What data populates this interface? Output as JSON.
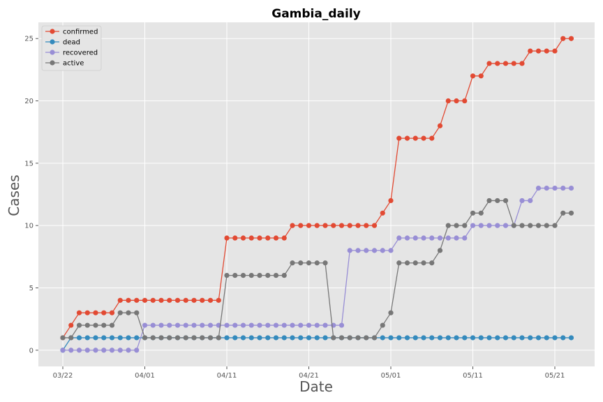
{
  "chart_data": {
    "type": "line",
    "title": "Gambia_daily",
    "xlabel": "Date",
    "ylabel": "Cases",
    "x_start": "03/22",
    "x_ticks": [
      {
        "label": "03/22",
        "index": 0
      },
      {
        "label": "04/01",
        "index": 10
      },
      {
        "label": "04/11",
        "index": 20
      },
      {
        "label": "04/21",
        "index": 30
      },
      {
        "label": "05/01",
        "index": 40
      },
      {
        "label": "05/11",
        "index": 50
      },
      {
        "label": "05/21",
        "index": 60
      }
    ],
    "ylim": [
      -1.3,
      26.3
    ],
    "y_ticks": [
      0,
      5,
      10,
      15,
      20,
      25
    ],
    "grid": true,
    "legend": "top-left",
    "series": [
      {
        "name": "confirmed",
        "color": "#E24A33",
        "values": [
          1,
          2,
          3,
          3,
          3,
          3,
          3,
          4,
          4,
          4,
          4,
          4,
          4,
          4,
          4,
          4,
          4,
          4,
          4,
          4,
          9,
          9,
          9,
          9,
          9,
          9,
          9,
          9,
          10,
          10,
          10,
          10,
          10,
          10,
          10,
          10,
          10,
          10,
          10,
          11,
          12,
          17,
          17,
          17,
          17,
          17,
          18,
          20,
          20,
          20,
          22,
          22,
          23,
          23,
          23,
          23,
          23,
          24,
          24,
          24,
          24,
          25,
          25
        ]
      },
      {
        "name": "dead",
        "color": "#348ABD",
        "values": [
          0,
          1,
          1,
          1,
          1,
          1,
          1,
          1,
          1,
          1,
          1,
          1,
          1,
          1,
          1,
          1,
          1,
          1,
          1,
          1,
          1,
          1,
          1,
          1,
          1,
          1,
          1,
          1,
          1,
          1,
          1,
          1,
          1,
          1,
          1,
          1,
          1,
          1,
          1,
          1,
          1,
          1,
          1,
          1,
          1,
          1,
          1,
          1,
          1,
          1,
          1,
          1,
          1,
          1,
          1,
          1,
          1,
          1,
          1,
          1,
          1,
          1,
          1
        ]
      },
      {
        "name": "recovered",
        "color": "#988ED5",
        "values": [
          0,
          0,
          0,
          0,
          0,
          0,
          0,
          0,
          0,
          0,
          2,
          2,
          2,
          2,
          2,
          2,
          2,
          2,
          2,
          2,
          2,
          2,
          2,
          2,
          2,
          2,
          2,
          2,
          2,
          2,
          2,
          2,
          2,
          2,
          2,
          8,
          8,
          8,
          8,
          8,
          8,
          9,
          9,
          9,
          9,
          9,
          9,
          9,
          9,
          9,
          10,
          10,
          10,
          10,
          10,
          10,
          12,
          12,
          13,
          13,
          13,
          13,
          13
        ]
      },
      {
        "name": "active",
        "color": "#777777",
        "values": [
          1,
          1,
          2,
          2,
          2,
          2,
          2,
          3,
          3,
          3,
          1,
          1,
          1,
          1,
          1,
          1,
          1,
          1,
          1,
          1,
          6,
          6,
          6,
          6,
          6,
          6,
          6,
          6,
          7,
          7,
          7,
          7,
          7,
          1,
          1,
          1,
          1,
          1,
          1,
          2,
          3,
          7,
          7,
          7,
          7,
          7,
          8,
          10,
          10,
          10,
          11,
          11,
          12,
          12,
          12,
          10,
          10,
          10,
          10,
          10,
          10,
          11,
          11
        ]
      }
    ]
  }
}
